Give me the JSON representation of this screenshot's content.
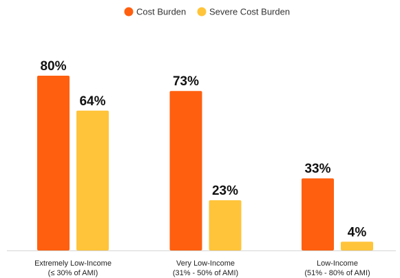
{
  "chart_data": {
    "type": "bar",
    "categories": [
      [
        "Extremely Low-Income",
        "(≤ 30% of AMI)"
      ],
      [
        "Very Low-Income",
        "(31% - 50% of AMI)"
      ],
      [
        "Low-Income",
        "(51% - 80% of AMI)"
      ]
    ],
    "series": [
      {
        "name": "Cost Burden",
        "values": [
          80,
          73,
          33
        ],
        "labels": [
          "80%",
          "73%",
          "33%"
        ],
        "color": "#FF5F0F"
      },
      {
        "name": "Severe Cost Burden",
        "values": [
          64,
          23,
          4
        ],
        "labels": [
          "64%",
          "23%",
          "4%"
        ],
        "color": "#FFC43A"
      }
    ],
    "ylim": [
      0,
      100
    ],
    "grid": false,
    "legend": "top-center"
  }
}
